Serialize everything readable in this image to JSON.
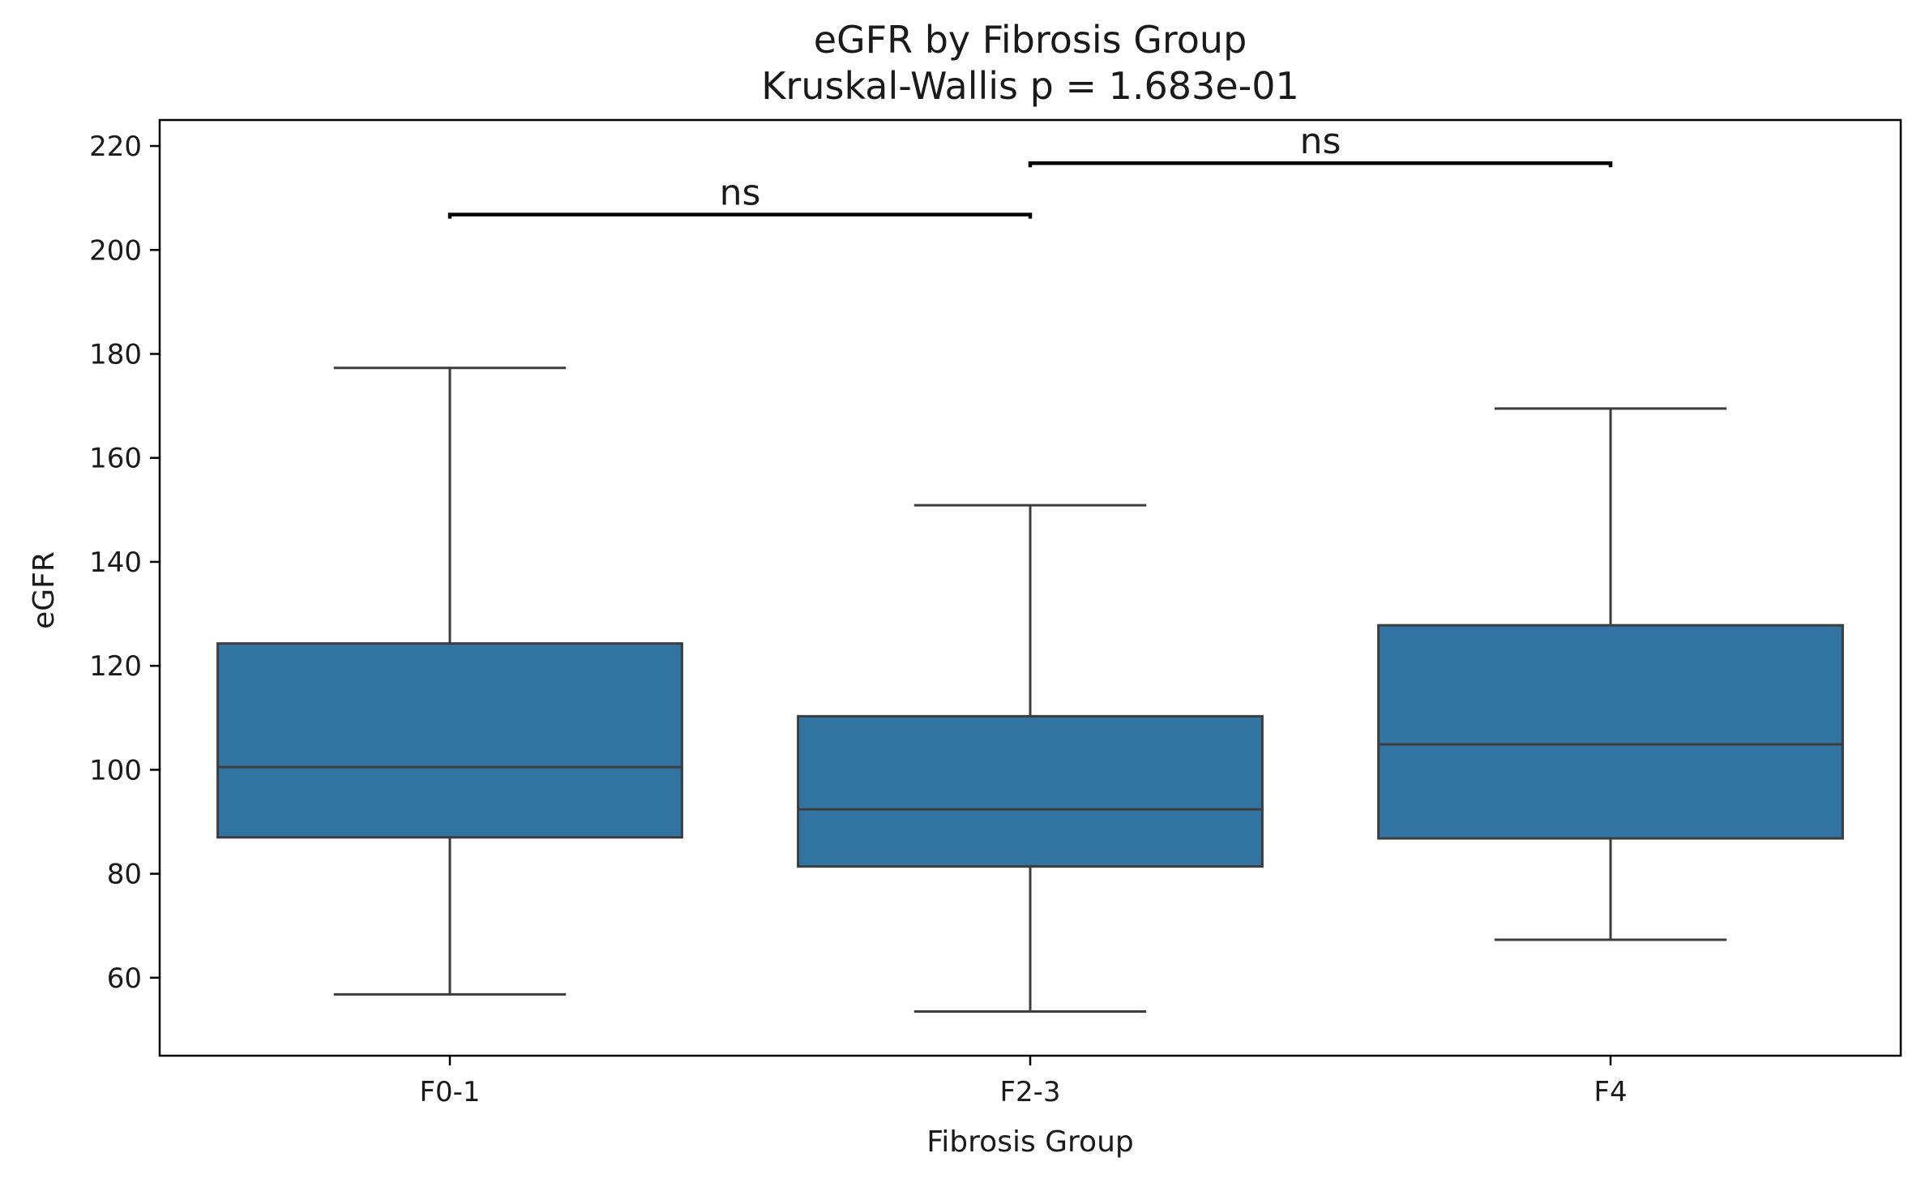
{
  "chart_data": {
    "type": "box",
    "title": "eGFR by Fibrosis Group",
    "subtitle": "Kruskal-Wallis p = 1.683e-01",
    "xlabel": "Fibrosis Group",
    "ylabel": "eGFR",
    "ylim": [
      45,
      225
    ],
    "yticks": [
      60,
      80,
      100,
      120,
      140,
      160,
      180,
      200,
      220
    ],
    "grid": false,
    "categories": [
      "F0-1",
      "F2-3",
      "F4"
    ],
    "boxes": [
      {
        "category": "F0-1",
        "whisker_low": 56.8,
        "q1": 87.0,
        "median": 100.5,
        "q3": 124.3,
        "whisker_high": 177.3
      },
      {
        "category": "F2-3",
        "whisker_low": 53.5,
        "q1": 81.4,
        "median": 92.4,
        "q3": 110.3,
        "whisker_high": 150.9
      },
      {
        "category": "F4",
        "whisker_low": 67.3,
        "q1": 86.8,
        "median": 104.9,
        "q3": 127.8,
        "whisker_high": 169.5
      }
    ],
    "box_color": "#3274a1",
    "line_color": "#3d3d3d",
    "annotations": [
      {
        "from": "F0-1",
        "to": "F2-3",
        "y": 206.8,
        "label": "ns"
      },
      {
        "from": "F2-3",
        "to": "F4",
        "y": 216.7,
        "label": "ns"
      }
    ]
  }
}
